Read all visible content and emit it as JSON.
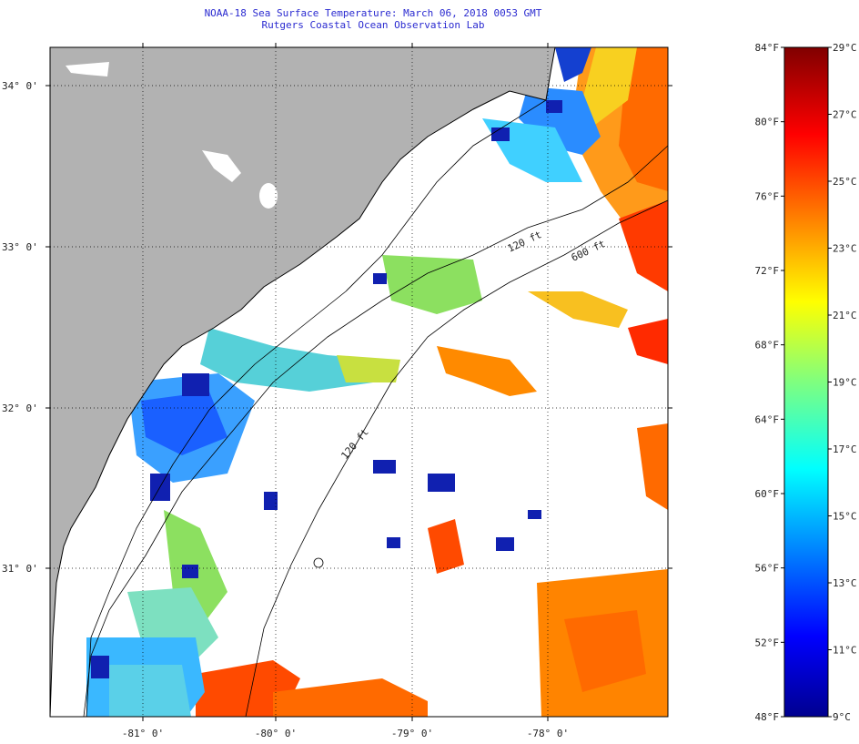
{
  "title": {
    "line1": "NOAA-18 Sea Surface Temperature:  March 06, 2018 0053 GMT",
    "line2": "Rutgers Coastal Ocean Observation Lab"
  },
  "map": {
    "lat_labels": [
      "34° 0'",
      "33° 0'",
      "32° 0'",
      "31° 0'"
    ],
    "lon_labels": [
      "-81° 0'",
      "-80° 0'",
      "-79° 0'",
      "-78° 0'"
    ],
    "isobath_labels": [
      "120 ft",
      "600 ft",
      "120 ft"
    ],
    "colors": {
      "land": "#b2b2b2",
      "cloud": "#ffffff",
      "coast": "#000000"
    }
  },
  "colorbar": {
    "fahrenheit_labels": [
      "84°F",
      "80°F",
      "76°F",
      "72°F",
      "68°F",
      "64°F",
      "60°F",
      "56°F",
      "52°F",
      "48°F"
    ],
    "celsius_labels": [
      "29°C",
      "27°C",
      "25°C",
      "23°C",
      "21°C",
      "19°C",
      "17°C",
      "15°C",
      "13°C",
      "11°C",
      "9°C"
    ],
    "range_f": [
      48,
      84
    ],
    "range_c": [
      9,
      29
    ]
  }
}
